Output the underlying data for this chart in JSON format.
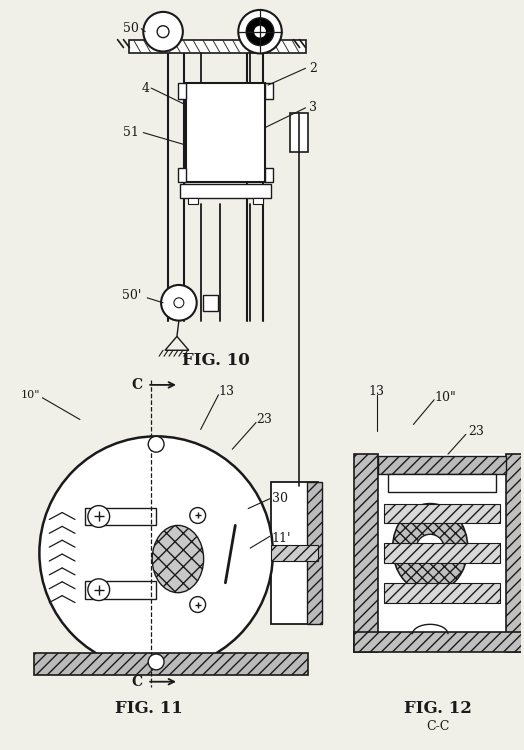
{
  "bg_color": "#f0efe8",
  "line_color": "#1a1a1a",
  "fig_labels": {
    "fig10": "FIG. 10",
    "fig11": "FIG. 11",
    "fig12": "FIG. 12",
    "fig12sub": "C-C"
  }
}
